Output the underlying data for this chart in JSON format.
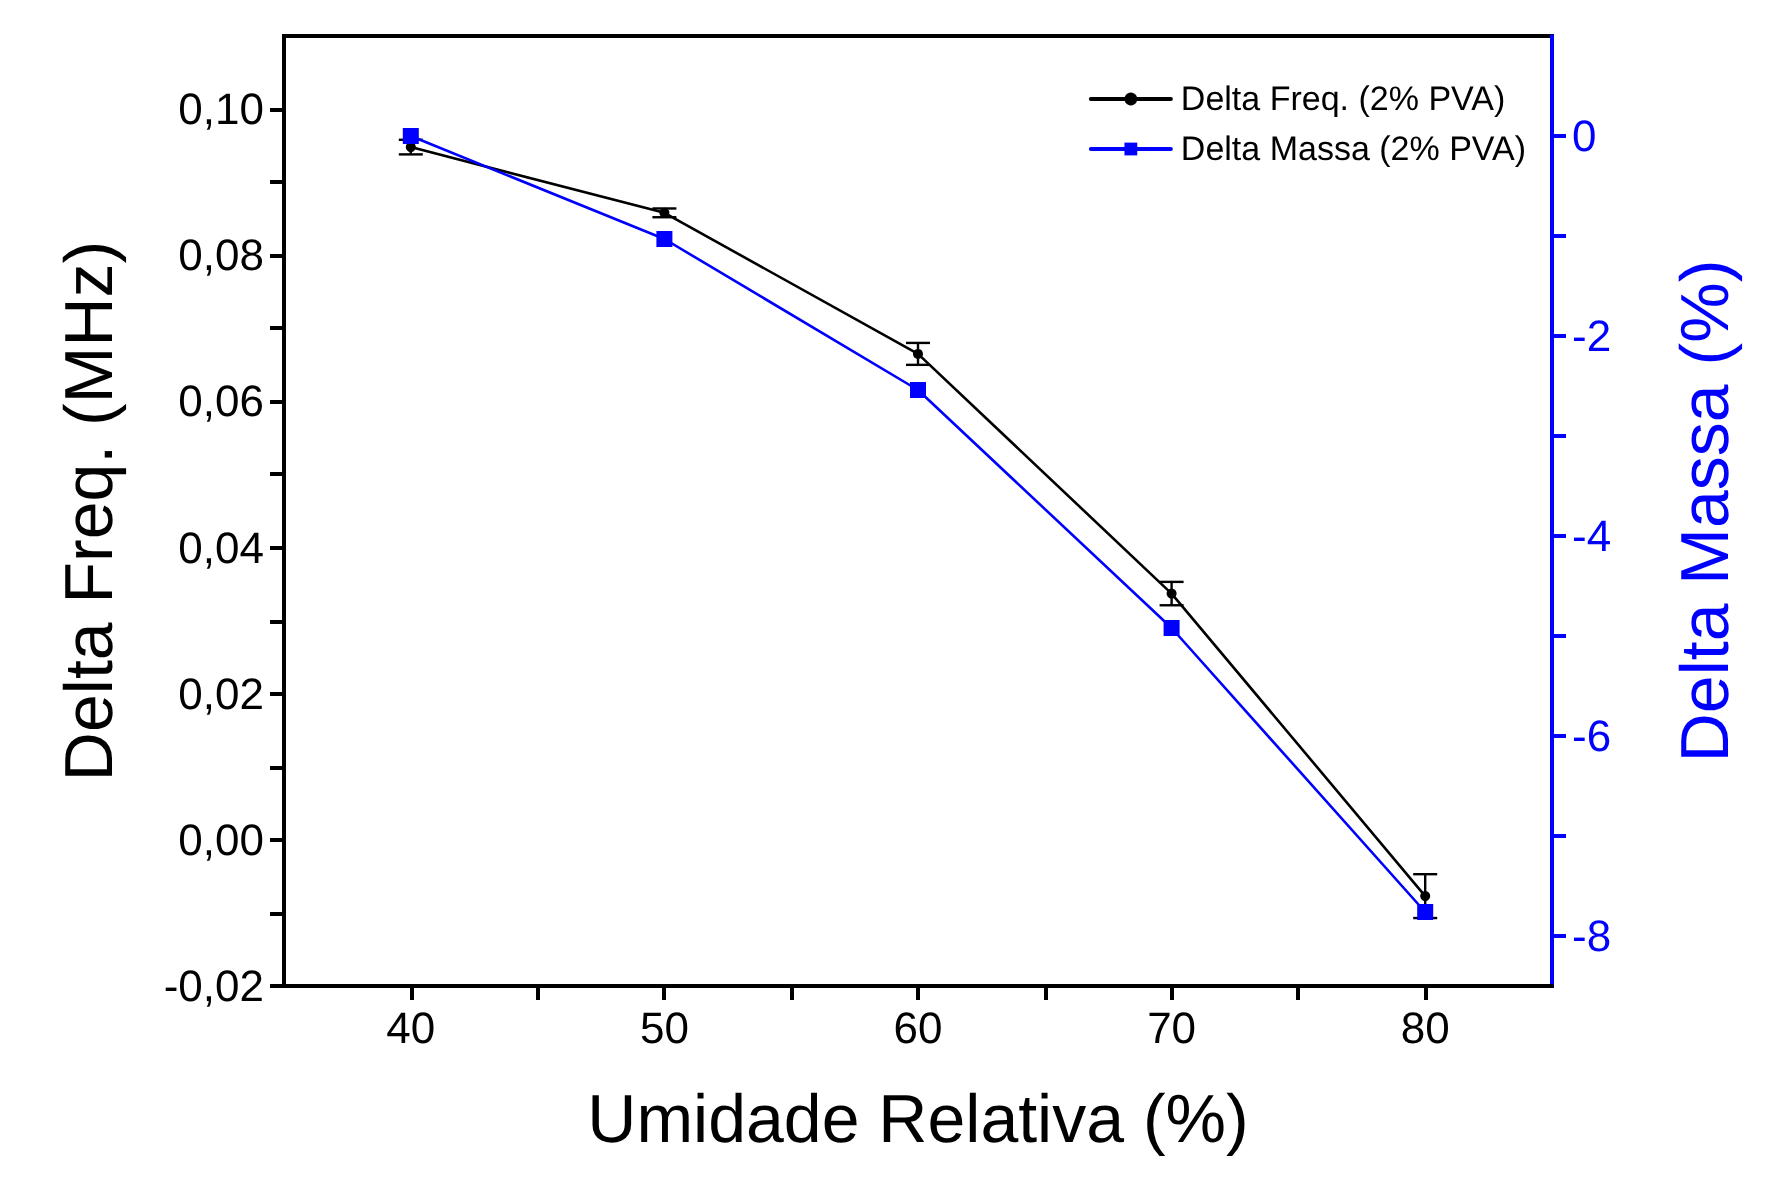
{
  "chart_data": {
    "type": "line",
    "xlabel": "Umidade Relativa (%)",
    "ylabel": "Delta Freq. (MHz)",
    "y2label": "Delta Massa (%)",
    "x": [
      40,
      50,
      60,
      70,
      80
    ],
    "series": [
      {
        "name": "Delta Freq. (2% PVA)",
        "color": "#000000",
        "marker": "circle",
        "values": [
          0.0948,
          0.0858,
          0.0665,
          0.0337,
          -0.0077
        ],
        "errors": [
          0.001,
          0.0006,
          0.0015,
          0.0016,
          0.003
        ]
      },
      {
        "name": "Delta Massa (2% PVA)",
        "color": "#0000ff",
        "marker": "square",
        "axis": "y2",
        "values": [
          0,
          -1.03,
          -2.54,
          -4.92,
          -7.76
        ]
      }
    ],
    "xlim": [
      35,
      85
    ],
    "xticks": [
      40,
      {
        "value": 45,
        "label": null
      },
      50,
      {
        "value": 55,
        "label": null
      },
      60,
      {
        "value": 65,
        "label": null
      },
      70,
      {
        "value": 75,
        "label": null
      },
      80
    ],
    "ylim": [
      -0.02,
      0.11
    ],
    "yticks": [
      {
        "value": -0.02,
        "label": "-0,02"
      },
      {
        "value": -0.01,
        "label": null
      },
      {
        "value": 0,
        "label": "0,00"
      },
      {
        "value": 0.01,
        "label": null
      },
      {
        "value": 0.02,
        "label": "0,02"
      },
      {
        "value": 0.03,
        "label": null
      },
      {
        "value": 0.04,
        "label": "0,04"
      },
      {
        "value": 0.05,
        "label": null
      },
      {
        "value": 0.06,
        "label": "0,06"
      },
      {
        "value": 0.07,
        "label": null
      },
      {
        "value": 0.08,
        "label": "0,08"
      },
      {
        "value": 0.09,
        "label": null
      },
      {
        "value": 0.1,
        "label": "0,10"
      }
    ],
    "y2lim": [
      -8.5,
      1
    ],
    "y2ticks": [
      -8,
      {
        "value": -7,
        "label": null
      },
      -6,
      {
        "value": -5,
        "label": null
      },
      -4,
      {
        "value": -3,
        "label": null
      },
      -2,
      {
        "value": -1,
        "label": null
      },
      0
    ],
    "legend": "top right",
    "grid": false,
    "line_style": "solid"
  }
}
